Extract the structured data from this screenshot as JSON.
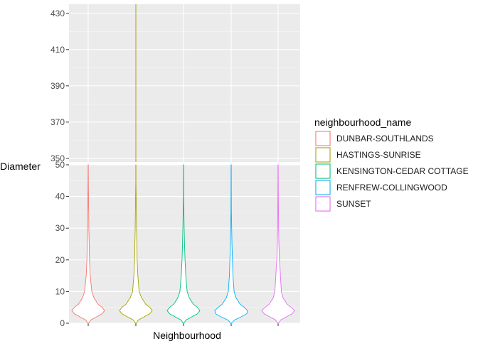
{
  "chart_data": {
    "type": "violin",
    "xlabel": "Neighbourhood",
    "ylabel": "Diameter",
    "broken_y_axis": true,
    "upper_panel": {
      "ylim": [
        348,
        435
      ],
      "yticks": [
        "350",
        "370",
        "390",
        "410",
        "430"
      ]
    },
    "lower_panel": {
      "ylim": [
        0,
        50
      ],
      "yticks": [
        "0",
        "10",
        "20",
        "30",
        "40",
        "50"
      ]
    },
    "legend": {
      "title": "neighbourhood_name",
      "position": "right"
    },
    "series": [
      {
        "name": "DUNBAR-SOUTHLANDS",
        "color": "#F8766D",
        "max": 50,
        "profile": [
          [
            0,
            0.02
          ],
          [
            1,
            0.15
          ],
          [
            2,
            0.5
          ],
          [
            3,
            0.85
          ],
          [
            4,
            1.0
          ],
          [
            5,
            0.85
          ],
          [
            6,
            0.6
          ],
          [
            8,
            0.35
          ],
          [
            10,
            0.22
          ],
          [
            15,
            0.12
          ],
          [
            20,
            0.08
          ],
          [
            25,
            0.06
          ],
          [
            30,
            0.04
          ],
          [
            35,
            0.03
          ],
          [
            38,
            0.02
          ],
          [
            45,
            0.008
          ],
          [
            50,
            0.004
          ]
        ]
      },
      {
        "name": "HASTINGS-SUNRISE",
        "color": "#A3A500",
        "max": 435,
        "profile": [
          [
            0,
            0.02
          ],
          [
            1,
            0.15
          ],
          [
            2,
            0.5
          ],
          [
            3,
            0.85
          ],
          [
            4,
            1.0
          ],
          [
            5,
            0.85
          ],
          [
            6,
            0.6
          ],
          [
            8,
            0.35
          ],
          [
            10,
            0.2
          ],
          [
            15,
            0.12
          ],
          [
            20,
            0.08
          ],
          [
            25,
            0.06
          ],
          [
            30,
            0.04
          ],
          [
            38,
            0.02
          ],
          [
            45,
            0.006
          ],
          [
            50,
            0.004
          ]
        ]
      },
      {
        "name": "KENSINGTON-CEDAR COTTAGE",
        "color": "#00BF7D",
        "max": 50,
        "profile": [
          [
            0,
            0.02
          ],
          [
            1,
            0.15
          ],
          [
            2,
            0.5
          ],
          [
            3,
            0.85
          ],
          [
            4,
            1.0
          ],
          [
            5,
            0.85
          ],
          [
            6,
            0.6
          ],
          [
            8,
            0.35
          ],
          [
            10,
            0.22
          ],
          [
            15,
            0.14
          ],
          [
            20,
            0.09
          ],
          [
            25,
            0.06
          ],
          [
            30,
            0.04
          ],
          [
            35,
            0.02
          ],
          [
            40,
            0.01
          ],
          [
            50,
            0.005
          ]
        ]
      },
      {
        "name": "RENFREW-COLLINGWOOD",
        "color": "#00B0F6",
        "max": 50,
        "profile": [
          [
            0,
            0.02
          ],
          [
            1,
            0.2
          ],
          [
            2,
            0.6
          ],
          [
            3,
            0.95
          ],
          [
            4,
            1.0
          ],
          [
            5,
            0.8
          ],
          [
            6,
            0.55
          ],
          [
            8,
            0.3
          ],
          [
            10,
            0.18
          ],
          [
            15,
            0.11
          ],
          [
            20,
            0.08
          ],
          [
            25,
            0.05
          ],
          [
            30,
            0.03
          ],
          [
            35,
            0.015
          ],
          [
            40,
            0.008
          ],
          [
            50,
            0.004
          ]
        ]
      },
      {
        "name": "SUNSET",
        "color": "#E76BF3",
        "max": 50,
        "profile": [
          [
            0,
            0.02
          ],
          [
            1,
            0.15
          ],
          [
            2,
            0.5
          ],
          [
            3,
            0.85
          ],
          [
            4,
            1.0
          ],
          [
            5,
            0.8
          ],
          [
            6,
            0.55
          ],
          [
            8,
            0.3
          ],
          [
            10,
            0.2
          ],
          [
            15,
            0.14
          ],
          [
            17,
            0.12
          ],
          [
            20,
            0.08
          ],
          [
            25,
            0.05
          ],
          [
            30,
            0.03
          ],
          [
            35,
            0.02
          ],
          [
            40,
            0.012
          ],
          [
            50,
            0.005
          ]
        ]
      }
    ]
  }
}
